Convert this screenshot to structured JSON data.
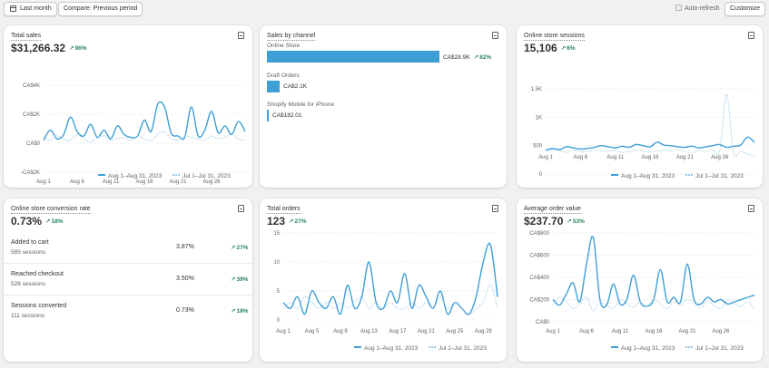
{
  "toolbar": {
    "last_month_label": "Last month",
    "compare_label": "Compare: Previous period",
    "auto_refresh_label": "Auto-refresh",
    "customize_label": "Customize"
  },
  "legend": {
    "current": "Aug 1–Aug 31, 2023",
    "previous": "Jul 1–Jul 31, 2023"
  },
  "cards": {
    "total_sales": {
      "title": "Total sales",
      "value": "$31,266.32",
      "delta": "96%"
    },
    "sales_by_channel": {
      "title": "Sales by channel",
      "channels": [
        {
          "name": "Online Store",
          "value": "CA$28.9K",
          "delta": "82%",
          "amount": 28900
        },
        {
          "name": "Draft Orders",
          "value": "CA$2.1K",
          "delta": "",
          "amount": 2100
        },
        {
          "name": "Shopify Mobile for iPhone",
          "value": "CA$182.01",
          "delta": "",
          "amount": 182.01
        }
      ]
    },
    "sessions": {
      "title": "Online store sessions",
      "value": "15,106",
      "delta": "6%"
    },
    "conversion": {
      "title": "Online store conversion rate",
      "value": "0.73%",
      "delta": "18%",
      "rows": [
        {
          "label": "Added to cart",
          "sub": "585 sessions",
          "pct": "3.87%",
          "delta": "27%"
        },
        {
          "label": "Reached checkout",
          "sub": "528 sessions",
          "pct": "3.50%",
          "delta": "39%"
        },
        {
          "label": "Sessions converted",
          "sub": "111 sessions",
          "pct": "0.73%",
          "delta": "18%"
        }
      ]
    },
    "total_orders": {
      "title": "Total orders",
      "value": "123",
      "delta": "27%"
    },
    "aov": {
      "title": "Average order value",
      "value": "$237.70",
      "delta": "53%"
    }
  },
  "colors": {
    "current": "#3d9fd6",
    "previous": "#9ac7e3",
    "positive": "#29845a"
  },
  "chart_data": [
    {
      "id": "total_sales",
      "type": "line",
      "yticks": [
        "CA$4K",
        "CA$2K",
        "CA$0",
        "-CA$2K"
      ],
      "ylim": [
        -2000,
        4000
      ],
      "xticks": [
        "Aug 1",
        "Aug 6",
        "Aug 11",
        "Aug 16",
        "Aug 21",
        "Aug 26"
      ],
      "xtick_days": [
        1,
        6,
        11,
        16,
        21,
        26
      ],
      "days": 31,
      "series": [
        {
          "name": "Aug 1–Aug 31, 2023",
          "values": [
            200,
            900,
            300,
            600,
            1800,
            800,
            500,
            1300,
            400,
            900,
            300,
            1200,
            600,
            400,
            500,
            1600,
            800,
            2700,
            2500,
            700,
            500,
            400,
            2500,
            500,
            900,
            2200,
            700,
            1200,
            600,
            1500,
            800
          ]
        },
        {
          "name": "Jul 1–Jul 31, 2023",
          "values": [
            400,
            200,
            500,
            300,
            200,
            600,
            300,
            100,
            400,
            500,
            200,
            300,
            400,
            200,
            500,
            300,
            200,
            600,
            800,
            300,
            200,
            500,
            400,
            300,
            200,
            500,
            300,
            400,
            600,
            300,
            200
          ]
        }
      ]
    },
    {
      "id": "sessions",
      "type": "line",
      "yticks": [
        "1.5K",
        "1K",
        "500",
        "0"
      ],
      "ylim": [
        0,
        1500
      ],
      "xticks": [
        "Aug 1",
        "Aug 6",
        "Aug 11",
        "Aug 16",
        "Aug 21",
        "Aug 26"
      ],
      "xtick_days": [
        1,
        6,
        11,
        16,
        21,
        26
      ],
      "days": 31,
      "series": [
        {
          "name": "Aug 1–Aug 31, 2023",
          "values": [
            420,
            450,
            430,
            480,
            460,
            440,
            450,
            470,
            500,
            480,
            460,
            490,
            470,
            520,
            500,
            480,
            560,
            510,
            500,
            480,
            470,
            490,
            460,
            480,
            500,
            520,
            470,
            490,
            510,
            650,
            560
          ]
        },
        {
          "name": "Jul 1–Jul 31, 2023",
          "values": [
            400,
            430,
            410,
            380,
            420,
            400,
            390,
            430,
            410,
            400,
            420,
            380,
            400,
            420,
            410,
            390,
            400,
            420,
            410,
            430,
            400,
            380,
            410,
            400,
            420,
            410,
            1400,
            380,
            400,
            350,
            320
          ]
        }
      ]
    },
    {
      "id": "total_orders",
      "type": "line",
      "yticks": [
        "15",
        "10",
        "5",
        "0"
      ],
      "ylim": [
        0,
        15
      ],
      "xticks": [
        "Aug 1",
        "Aug 5",
        "Aug 9",
        "Aug 13",
        "Aug 17",
        "Aug 21",
        "Aug 25",
        "Aug 29"
      ],
      "xtick_days": [
        1,
        5,
        9,
        13,
        17,
        21,
        25,
        29
      ],
      "days": 31,
      "series": [
        {
          "name": "Aug 1–Aug 31, 2023",
          "values": [
            3,
            2,
            4,
            1,
            5,
            3,
            2,
            4,
            1,
            6,
            2,
            4,
            10,
            3,
            2,
            5,
            3,
            8,
            2,
            6,
            4,
            2,
            5,
            1,
            3,
            2,
            1,
            4,
            10,
            13,
            4
          ]
        },
        {
          "name": "Jul 1–Jul 31, 2023",
          "values": [
            2,
            3,
            2,
            4,
            3,
            2,
            3,
            2,
            3,
            2,
            3,
            4,
            2,
            3,
            2,
            3,
            2,
            2,
            3,
            2,
            3,
            2,
            4,
            2,
            3,
            2,
            1,
            2,
            3,
            6,
            2
          ]
        }
      ]
    },
    {
      "id": "aov",
      "type": "line",
      "yticks": [
        "CA$800",
        "CA$600",
        "CA$400",
        "CA$200",
        "CA$0"
      ],
      "ylim": [
        0,
        800
      ],
      "xticks": [
        "Aug 1",
        "Aug 6",
        "Aug 11",
        "Aug 16",
        "Aug 21",
        "Aug 26"
      ],
      "xtick_days": [
        1,
        6,
        11,
        16,
        21,
        26
      ],
      "days": 31,
      "series": [
        {
          "name": "Aug 1–Aug 31, 2023",
          "values": [
            200,
            150,
            250,
            350,
            180,
            520,
            760,
            200,
            150,
            340,
            160,
            200,
            420,
            180,
            140,
            200,
            470,
            180,
            220,
            180,
            520,
            200,
            160,
            220,
            180,
            200,
            160,
            180,
            200,
            220,
            240
          ]
        },
        {
          "name": "Jul 1–Jul 31, 2023",
          "values": [
            150,
            220,
            180,
            120,
            160,
            220,
            100,
            180,
            150,
            120,
            200,
            160,
            130,
            180,
            140,
            200,
            160,
            120,
            180,
            150,
            200,
            170,
            130,
            180,
            150,
            120,
            200,
            160,
            140,
            180,
            120
          ]
        }
      ]
    }
  ]
}
